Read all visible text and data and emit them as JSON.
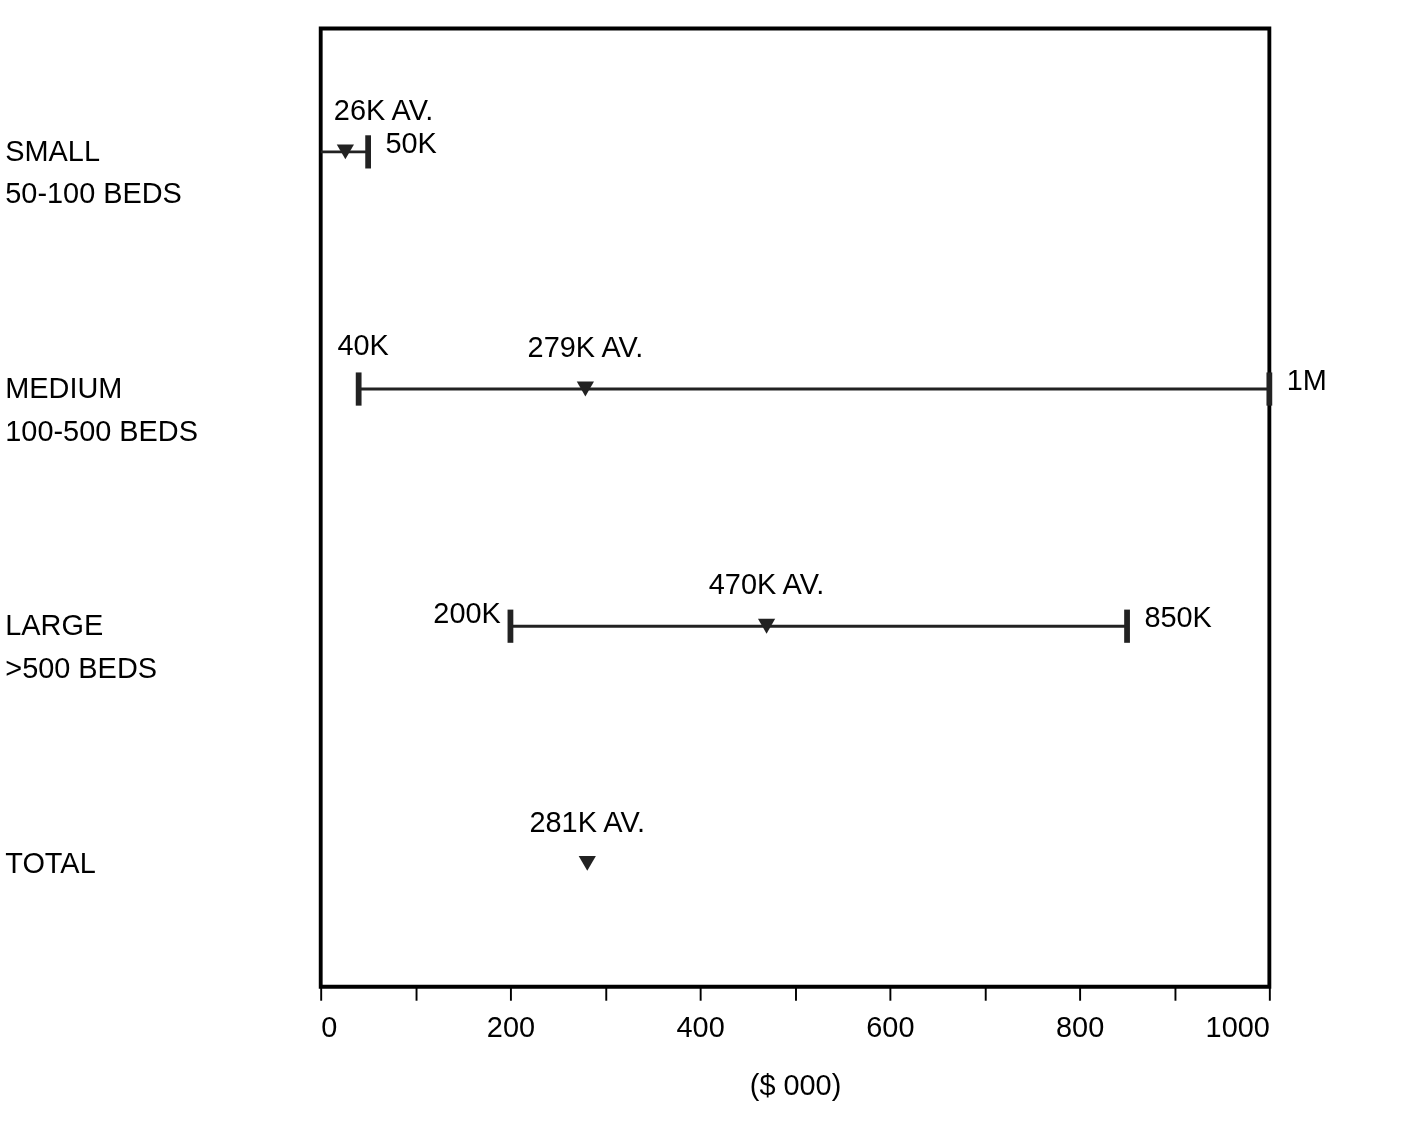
{
  "chart_data": {
    "type": "bar",
    "orientation": "horizontal",
    "xlabel": "($ 000)",
    "grid": false,
    "categories": [
      "SMALL\n50-100 BEDS",
      "MEDIUM\n100-500 BEDS",
      "LARGE\n>500 BEDS",
      "TOTAL"
    ],
    "xlim": [
      0,
      1000
    ],
    "xticks": [
      0,
      {
        "value": 100,
        "label": null
      },
      200,
      {
        "value": 300,
        "label": null
      },
      400,
      {
        "value": 500,
        "label": null
      },
      600,
      {
        "value": 700,
        "label": null
      },
      800,
      {
        "value": 900,
        "label": null
      },
      1000
    ],
    "series": [
      {
        "color": "#222222",
        "base": [
          0,
          40,
          200,
          null
        ],
        "values": [
          50,
          960,
          650,
          null
        ]
      },
      {
        "type": "scatter",
        "marker": "triangle",
        "color": "#222222",
        "values": [
          26,
          279,
          470,
          281
        ],
        "value_labels": [
          "26K AV.",
          "279K AV.",
          "470K AV.",
          "281K AV."
        ]
      }
    ],
    "annotations": [
      "50K",
      "40K",
      "1M",
      "200K",
      "850K"
    ]
  }
}
